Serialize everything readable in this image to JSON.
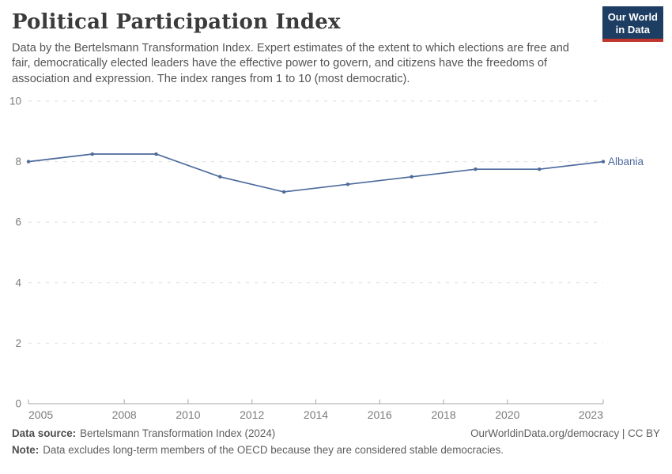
{
  "header": {
    "title": "Political Participation Index",
    "subtitle": "Data by the Bertelsmann Transformation Index. Expert estimates of the extent to which elections are free and fair, democratically elected leaders have the effective power to govern, and citizens have the freedoms of association and expression. The index ranges from 1 to 10 (most democratic)."
  },
  "logo": {
    "line1": "Our World",
    "line2": "in Data",
    "bg_color": "#1d3d63",
    "accent_color": "#c0362c"
  },
  "chart_data": {
    "type": "line",
    "title": "Political Participation Index",
    "xlabel": "",
    "ylabel": "",
    "xlim": [
      2005,
      2023
    ],
    "ylim": [
      0,
      10
    ],
    "grid": "horizontal-dashed",
    "x_ticks": [
      2005,
      2008,
      2010,
      2012,
      2014,
      2016,
      2018,
      2020,
      2023
    ],
    "y_ticks": [
      0,
      2,
      4,
      6,
      8,
      10
    ],
    "series": [
      {
        "name": "Albania",
        "color": "#4C6A9C",
        "x": [
          2005,
          2007,
          2009,
          2011,
          2013,
          2015,
          2017,
          2019,
          2021,
          2023
        ],
        "values": [
          8.0,
          8.25,
          8.25,
          7.5,
          7.0,
          7.25,
          7.5,
          7.75,
          7.75,
          8.0
        ]
      }
    ],
    "legend_position": "end-of-line-label"
  },
  "footer": {
    "data_source_label": "Data source:",
    "data_source_text": "Bertelsmann Transformation Index (2024)",
    "note_label": "Note:",
    "note_text": "Data excludes long-term members of the OECD because they are considered stable democracies.",
    "link_text": "OurWorldinData.org/democracy | CC BY"
  }
}
